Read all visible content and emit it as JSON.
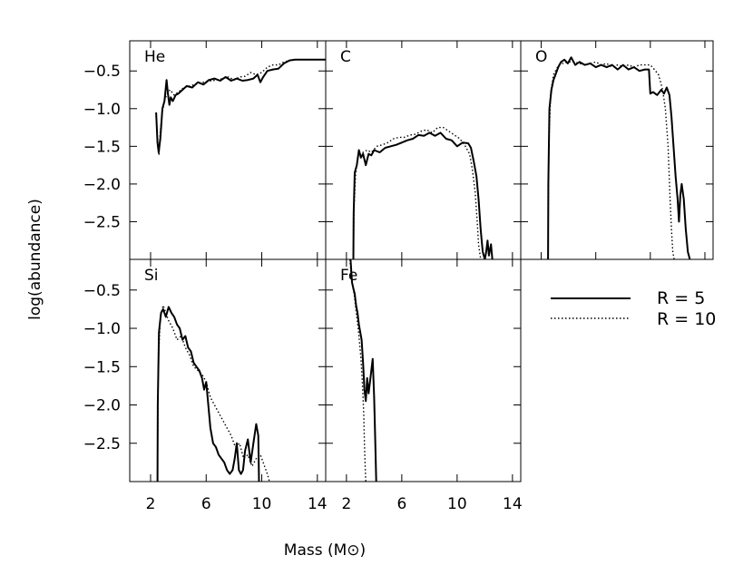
{
  "figure": {
    "ylabel": "log(abundance)",
    "xlabel": "Mass (M⊙)"
  },
  "chart_data": {
    "type": "line",
    "ylabel": "log(abundance)",
    "xlabel": "Mass (M⊙)",
    "legend_placement": "right, in empty lower-right panel slot",
    "series_styles": [
      {
        "name": "R = 5",
        "style": "solid"
      },
      {
        "name": "R = 10",
        "style": "dotted"
      }
    ],
    "panels": [
      {
        "label": "He",
        "xlim": [
          0.5,
          14.6
        ],
        "ylim": [
          -3.0,
          -0.1
        ],
        "yticks": [
          -0.5,
          -1.0,
          -1.5,
          -2.0,
          -2.5
        ],
        "ytick_labels": [
          "−0.5",
          "−1.0",
          "−1.5",
          "−2.0",
          "−2.5"
        ],
        "xticks": [
          2,
          6,
          10,
          14
        ],
        "xtick_labels": [],
        "series": [
          {
            "name": "R = 5",
            "x": [
              2.4,
              2.5,
              2.58,
              2.7,
              2.85,
              3.0,
              3.15,
              3.25,
              3.35,
              3.45,
              3.6,
              3.8,
              4.0,
              4.3,
              4.6,
              5.0,
              5.4,
              5.8,
              6.2,
              6.6,
              7.0,
              7.4,
              7.8,
              8.2,
              8.6,
              9.0,
              9.4,
              9.7,
              9.9,
              10.1,
              10.4,
              10.8,
              11.2,
              11.6,
              12.0,
              12.4,
              13.0,
              14.0,
              14.6
            ],
            "y": [
              -1.05,
              -1.45,
              -1.58,
              -1.4,
              -1.0,
              -0.9,
              -0.62,
              -0.8,
              -0.95,
              -0.85,
              -0.9,
              -0.82,
              -0.8,
              -0.75,
              -0.7,
              -0.72,
              -0.65,
              -0.68,
              -0.62,
              -0.6,
              -0.63,
              -0.58,
              -0.63,
              -0.6,
              -0.63,
              -0.62,
              -0.6,
              -0.55,
              -0.65,
              -0.58,
              -0.5,
              -0.48,
              -0.47,
              -0.4,
              -0.36,
              -0.35,
              -0.35,
              -0.35,
              -0.35
            ]
          },
          {
            "name": "R = 10",
            "x": [
              2.4,
              2.5,
              2.6,
              2.7,
              2.85,
              3.0,
              3.2,
              3.4,
              3.7,
              4.0,
              4.4,
              4.8,
              5.2,
              5.6,
              6.0,
              6.4,
              6.8,
              7.2,
              7.6,
              8.0,
              8.4,
              8.8,
              9.2,
              9.6,
              10.0,
              10.4,
              10.8,
              11.2,
              11.6,
              12.0,
              12.4,
              13.0,
              14.0,
              14.6
            ],
            "y": [
              -1.1,
              -1.4,
              -1.62,
              -1.3,
              -1.05,
              -0.88,
              -0.8,
              -0.75,
              -0.82,
              -0.78,
              -0.72,
              -0.7,
              -0.68,
              -0.66,
              -0.64,
              -0.63,
              -0.62,
              -0.6,
              -0.58,
              -0.62,
              -0.58,
              -0.57,
              -0.52,
              -0.55,
              -0.52,
              -0.45,
              -0.42,
              -0.42,
              -0.38,
              -0.36,
              -0.35,
              -0.35,
              -0.35,
              -0.35
            ]
          }
        ]
      },
      {
        "label": "C",
        "xlim": [
          0.5,
          14.6
        ],
        "ylim": [
          -3.0,
          -0.1
        ],
        "yticks": [
          -0.5,
          -1.0,
          -1.5,
          -2.0,
          -2.5
        ],
        "ytick_labels": [],
        "xticks": [
          2,
          6,
          10,
          14
        ],
        "xtick_labels": [],
        "series": [
          {
            "name": "R = 5",
            "x": [
              2.5,
              2.52,
              2.6,
              2.75,
              2.9,
              3.05,
              3.2,
              3.4,
              3.6,
              3.8,
              4.0,
              4.4,
              4.8,
              5.2,
              5.6,
              6.0,
              6.4,
              6.8,
              7.2,
              7.6,
              8.0,
              8.4,
              8.8,
              9.2,
              9.6,
              10.0,
              10.4,
              10.8,
              11.0,
              11.2,
              11.4,
              11.55,
              11.7,
              11.85,
              12.0,
              12.1,
              12.2,
              12.3,
              12.45,
              12.55
            ],
            "y": [
              -3.0,
              -2.4,
              -1.85,
              -1.75,
              -1.55,
              -1.65,
              -1.6,
              -1.75,
              -1.6,
              -1.62,
              -1.55,
              -1.58,
              -1.52,
              -1.5,
              -1.48,
              -1.45,
              -1.42,
              -1.4,
              -1.35,
              -1.36,
              -1.32,
              -1.36,
              -1.32,
              -1.4,
              -1.42,
              -1.5,
              -1.45,
              -1.46,
              -1.52,
              -1.7,
              -1.9,
              -2.2,
              -2.6,
              -2.9,
              -3.0,
              -2.9,
              -2.75,
              -2.95,
              -2.8,
              -3.0
            ]
          },
          {
            "name": "R = 10",
            "x": [
              2.5,
              2.55,
              2.65,
              2.8,
              3.0,
              3.2,
              3.5,
              3.8,
              4.2,
              4.6,
              5.0,
              5.4,
              5.8,
              6.2,
              6.6,
              7.0,
              7.4,
              7.8,
              8.2,
              8.6,
              9.0,
              9.4,
              9.8,
              10.2,
              10.6,
              10.9,
              11.1,
              11.3,
              11.45,
              11.55,
              11.7
            ],
            "y": [
              -3.0,
              -2.3,
              -1.9,
              -1.65,
              -1.62,
              -1.58,
              -1.55,
              -1.58,
              -1.5,
              -1.48,
              -1.45,
              -1.4,
              -1.38,
              -1.38,
              -1.35,
              -1.34,
              -1.3,
              -1.28,
              -1.32,
              -1.25,
              -1.25,
              -1.3,
              -1.35,
              -1.4,
              -1.5,
              -1.6,
              -1.8,
              -2.1,
              -2.5,
              -2.8,
              -3.0
            ]
          }
        ]
      },
      {
        "label": "O",
        "xlim": [
          0.5,
          14.6
        ],
        "ylim": [
          -3.0,
          -0.1
        ],
        "yticks": [
          -0.5,
          -1.0,
          -1.5,
          -2.0,
          -2.5
        ],
        "ytick_labels": [],
        "xticks": [
          2,
          6,
          10,
          14
        ],
        "xtick_labels": [],
        "series": [
          {
            "name": "R = 5",
            "x": [
              2.5,
              2.52,
              2.6,
              2.75,
              2.9,
              3.05,
              3.25,
              3.45,
              3.7,
              3.95,
              4.2,
              4.5,
              4.8,
              5.2,
              5.6,
              6.0,
              6.4,
              6.8,
              7.2,
              7.6,
              8.0,
              8.4,
              8.8,
              9.2,
              9.6,
              9.9,
              10.0,
              10.2,
              10.5,
              10.8,
              11.0,
              11.2,
              11.4,
              11.55,
              11.7,
              11.85,
              12.0,
              12.1,
              12.2,
              12.3,
              12.45,
              12.6,
              12.75,
              12.9
            ],
            "y": [
              -3.0,
              -2.0,
              -1.0,
              -0.75,
              -0.62,
              -0.55,
              -0.45,
              -0.38,
              -0.35,
              -0.4,
              -0.32,
              -0.42,
              -0.38,
              -0.42,
              -0.4,
              -0.45,
              -0.42,
              -0.45,
              -0.42,
              -0.48,
              -0.42,
              -0.48,
              -0.45,
              -0.5,
              -0.48,
              -0.48,
              -0.8,
              -0.78,
              -0.82,
              -0.75,
              -0.8,
              -0.72,
              -0.82,
              -1.1,
              -1.5,
              -1.9,
              -2.2,
              -2.5,
              -2.15,
              -2.0,
              -2.2,
              -2.6,
              -2.9,
              -3.0
            ]
          },
          {
            "name": "R = 10",
            "x": [
              2.5,
              2.55,
              2.7,
              2.9,
              3.1,
              3.3,
              3.6,
              4.0,
              4.4,
              4.8,
              5.2,
              5.6,
              6.0,
              6.4,
              6.8,
              7.2,
              7.6,
              8.0,
              8.4,
              8.8,
              9.2,
              9.6,
              10.0,
              10.3,
              10.6,
              10.9,
              11.1,
              11.3,
              11.45,
              11.55,
              11.65,
              11.75
            ],
            "y": [
              -3.0,
              -1.5,
              -0.78,
              -0.55,
              -0.48,
              -0.42,
              -0.4,
              -0.38,
              -0.38,
              -0.4,
              -0.42,
              -0.4,
              -0.38,
              -0.42,
              -0.4,
              -0.45,
              -0.42,
              -0.44,
              -0.42,
              -0.45,
              -0.42,
              -0.42,
              -0.42,
              -0.48,
              -0.55,
              -0.75,
              -1.0,
              -1.5,
              -2.2,
              -2.6,
              -2.9,
              -3.0
            ]
          }
        ]
      },
      {
        "label": "Si",
        "xlim": [
          0.5,
          14.6
        ],
        "ylim": [
          -3.0,
          -0.1
        ],
        "yticks": [
          -0.5,
          -1.0,
          -1.5,
          -2.0,
          -2.5
        ],
        "ytick_labels": [
          "−0.5",
          "−1.0",
          "−1.5",
          "−2.0",
          "−2.5"
        ],
        "xticks": [
          2,
          6,
          10,
          14
        ],
        "xtick_labels": [
          "2",
          "6",
          "10",
          "14"
        ],
        "series": [
          {
            "name": "R = 5",
            "x": [
              2.5,
              2.52,
              2.6,
              2.75,
              2.9,
              3.1,
              3.3,
              3.5,
              3.7,
              3.9,
              4.1,
              4.3,
              4.5,
              4.7,
              4.9,
              5.1,
              5.3,
              5.5,
              5.7,
              5.85,
              6.0,
              6.15,
              6.3,
              6.5,
              6.7,
              6.9,
              7.1,
              7.3,
              7.5,
              7.7,
              7.9,
              8.05,
              8.2,
              8.35,
              8.5,
              8.65,
              8.8,
              9.0,
              9.2,
              9.4,
              9.6,
              9.75,
              9.8
            ],
            "y": [
              -3.0,
              -2.0,
              -1.05,
              -0.8,
              -0.75,
              -0.85,
              -0.72,
              -0.8,
              -0.85,
              -0.95,
              -1.0,
              -1.15,
              -1.1,
              -1.25,
              -1.3,
              -1.45,
              -1.5,
              -1.55,
              -1.65,
              -1.8,
              -1.7,
              -2.0,
              -2.3,
              -2.5,
              -2.55,
              -2.65,
              -2.7,
              -2.75,
              -2.85,
              -2.9,
              -2.85,
              -2.7,
              -2.5,
              -2.85,
              -2.9,
              -2.85,
              -2.6,
              -2.45,
              -2.75,
              -2.5,
              -2.25,
              -2.4,
              -3.0
            ]
          },
          {
            "name": "R = 10",
            "x": [
              2.5,
              2.55,
              2.7,
              2.9,
              3.1,
              3.3,
              3.6,
              3.9,
              4.2,
              4.5,
              4.8,
              5.1,
              5.4,
              5.7,
              6.0,
              6.3,
              6.6,
              6.9,
              7.2,
              7.5,
              7.8,
              8.1,
              8.4,
              8.7,
              9.0,
              9.3,
              9.6,
              9.9,
              10.2,
              10.4,
              10.55
            ],
            "y": [
              -3.0,
              -1.5,
              -0.85,
              -0.7,
              -0.8,
              -0.9,
              -1.0,
              -1.15,
              -1.1,
              -1.25,
              -1.35,
              -1.5,
              -1.55,
              -1.6,
              -1.7,
              -1.9,
              -2.0,
              -2.1,
              -2.2,
              -2.3,
              -2.4,
              -2.55,
              -2.5,
              -2.7,
              -2.65,
              -2.8,
              -2.7,
              -2.65,
              -2.8,
              -2.9,
              -3.0
            ]
          }
        ]
      },
      {
        "label": "Fe",
        "xlim": [
          0.5,
          14.6
        ],
        "ylim": [
          -3.0,
          -0.1
        ],
        "yticks": [
          -0.5,
          -1.0,
          -1.5,
          -2.0,
          -2.5
        ],
        "ytick_labels": [],
        "xticks": [
          2,
          6,
          10,
          14
        ],
        "xtick_labels": [
          "2",
          "6",
          "10",
          "14"
        ],
        "series": [
          {
            "name": "R = 5",
            "x": [
              2.3,
              2.4,
              2.5,
              2.6,
              2.7,
              2.8,
              2.9,
              3.0,
              3.1,
              3.2,
              3.3,
              3.4,
              3.5,
              3.6,
              3.7,
              3.8,
              3.9,
              4.0,
              4.1,
              4.15
            ],
            "y": [
              -0.1,
              -0.4,
              -0.48,
              -0.55,
              -0.7,
              -0.8,
              -0.95,
              -1.05,
              -1.15,
              -1.45,
              -1.8,
              -1.95,
              -1.65,
              -1.85,
              -1.7,
              -1.55,
              -1.4,
              -1.9,
              -2.6,
              -3.0
            ]
          },
          {
            "name": "R = 10",
            "x": [
              2.25,
              2.35,
              2.45,
              2.55,
              2.65,
              2.75,
              2.85,
              2.95,
              3.05,
              3.15,
              3.25,
              3.3,
              3.35,
              3.4
            ],
            "y": [
              -0.1,
              -0.3,
              -0.45,
              -0.55,
              -0.7,
              -0.85,
              -1.0,
              -1.2,
              -1.4,
              -1.7,
              -2.1,
              -2.5,
              -2.8,
              -3.0
            ]
          }
        ]
      }
    ],
    "legend": [
      {
        "label": "R = 5",
        "style": "solid"
      },
      {
        "label": "R = 10",
        "style": "dotted"
      }
    ]
  }
}
